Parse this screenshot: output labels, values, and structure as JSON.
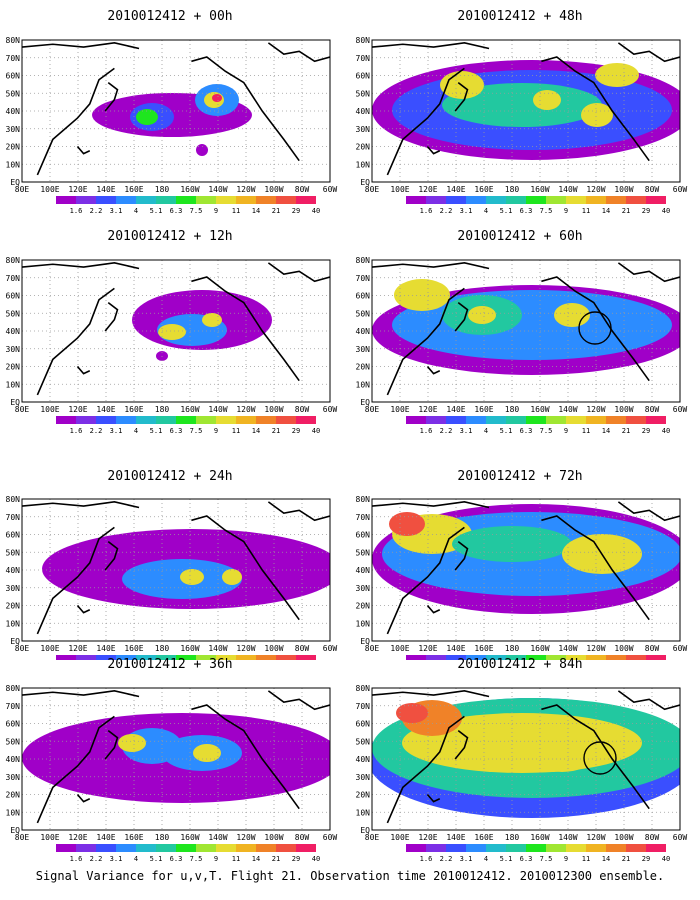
{
  "colors": {
    "palette": [
      "#a000c8",
      "#7c2fe6",
      "#3a4fff",
      "#2c8cff",
      "#22bbcc",
      "#22c8a0",
      "#1ee61e",
      "#a0e632",
      "#e6dc32",
      "#f0b422",
      "#f08228",
      "#f05040",
      "#f01e64"
    ],
    "coast": "#000000",
    "grid": "#9a9a9a"
  },
  "map": {
    "lat_labels": [
      "EQ",
      "10N",
      "20N",
      "30N",
      "40N",
      "50N",
      "60N",
      "70N",
      "80N"
    ],
    "lon_labels": [
      "80E",
      "100E",
      "120E",
      "140E",
      "160E",
      "180",
      "160W",
      "140W",
      "120W",
      "100W",
      "80W",
      "60W"
    ]
  },
  "legend": {
    "labels": [
      "1.6",
      "2.2",
      "3.1",
      "4",
      "5.1",
      "6.3",
      "7.5",
      "9",
      "11",
      "14",
      "21",
      "29",
      "40"
    ]
  },
  "panels": [
    {
      "title": "2010012412 + 00h"
    },
    {
      "title": "2010012412 + 48h"
    },
    {
      "title": "2010012412 + 12h"
    },
    {
      "title": "2010012412 + 60h"
    },
    {
      "title": "2010012412 + 24h"
    },
    {
      "title": "2010012412 + 72h"
    },
    {
      "title": "2010012412 + 36h"
    },
    {
      "title": "2010012412 + 84h"
    }
  ],
  "footer": "Signal Variance for u,v,T. Flight 21. Observation time 2010012412. 2010012300 ensemble."
}
